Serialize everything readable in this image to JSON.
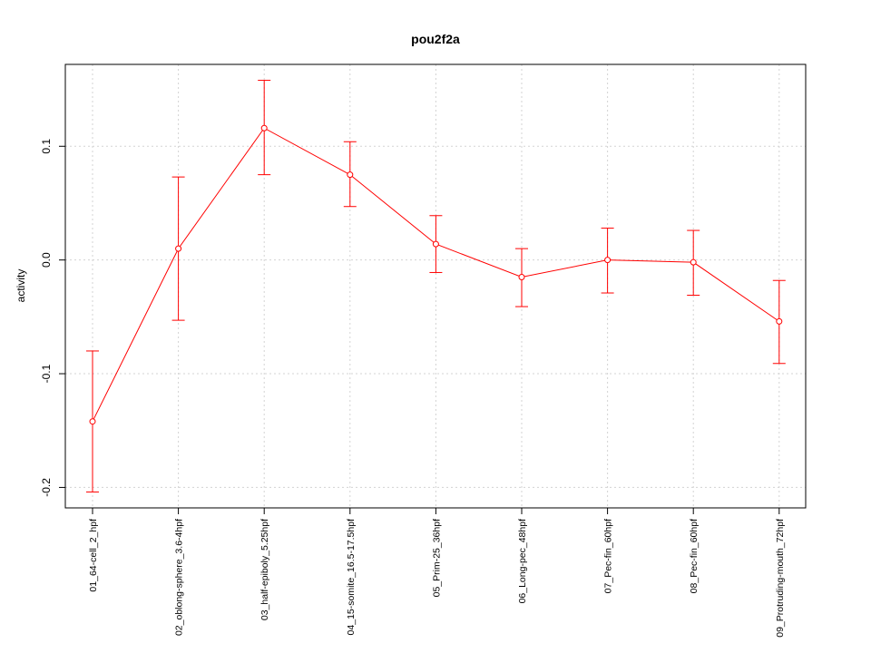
{
  "chart_data": {
    "type": "line",
    "title": "pou2f2a",
    "xlabel": "",
    "ylabel": "activity",
    "categories": [
      "01_64-cell_2_hpf",
      "02_oblong-sphere_3.6-4hpf",
      "03_half-epiboly_5.25hpf",
      "04_15-somite_16.5-17.5hpf",
      "05_Prim-25_36hpf",
      "06_Long-pec_48hpf",
      "07_Pec-fin_60hpf",
      "08_Pec-fin_60hpf",
      "09_Protruding-mouth_72hpf"
    ],
    "series": [
      {
        "values": [
          -0.142,
          0.01,
          0.116,
          0.075,
          0.014,
          -0.015,
          0.0,
          -0.002,
          -0.054
        ],
        "error_low": [
          -0.204,
          -0.053,
          0.075,
          0.047,
          -0.011,
          -0.041,
          -0.029,
          -0.031,
          -0.091
        ],
        "error_high": [
          -0.08,
          0.073,
          0.158,
          0.104,
          0.039,
          0.01,
          0.028,
          0.026,
          -0.018
        ],
        "color": "#ff0000"
      }
    ],
    "yticks": [
      -0.2,
      -0.1,
      0.0,
      0.1
    ],
    "ytick_labels": [
      "-0.2",
      "-0.1",
      "0.0",
      "0.1"
    ],
    "ylim": [
      -0.218,
      0.172
    ],
    "grid": true,
    "grid_color": "#d3d3d3",
    "legend": "none"
  }
}
